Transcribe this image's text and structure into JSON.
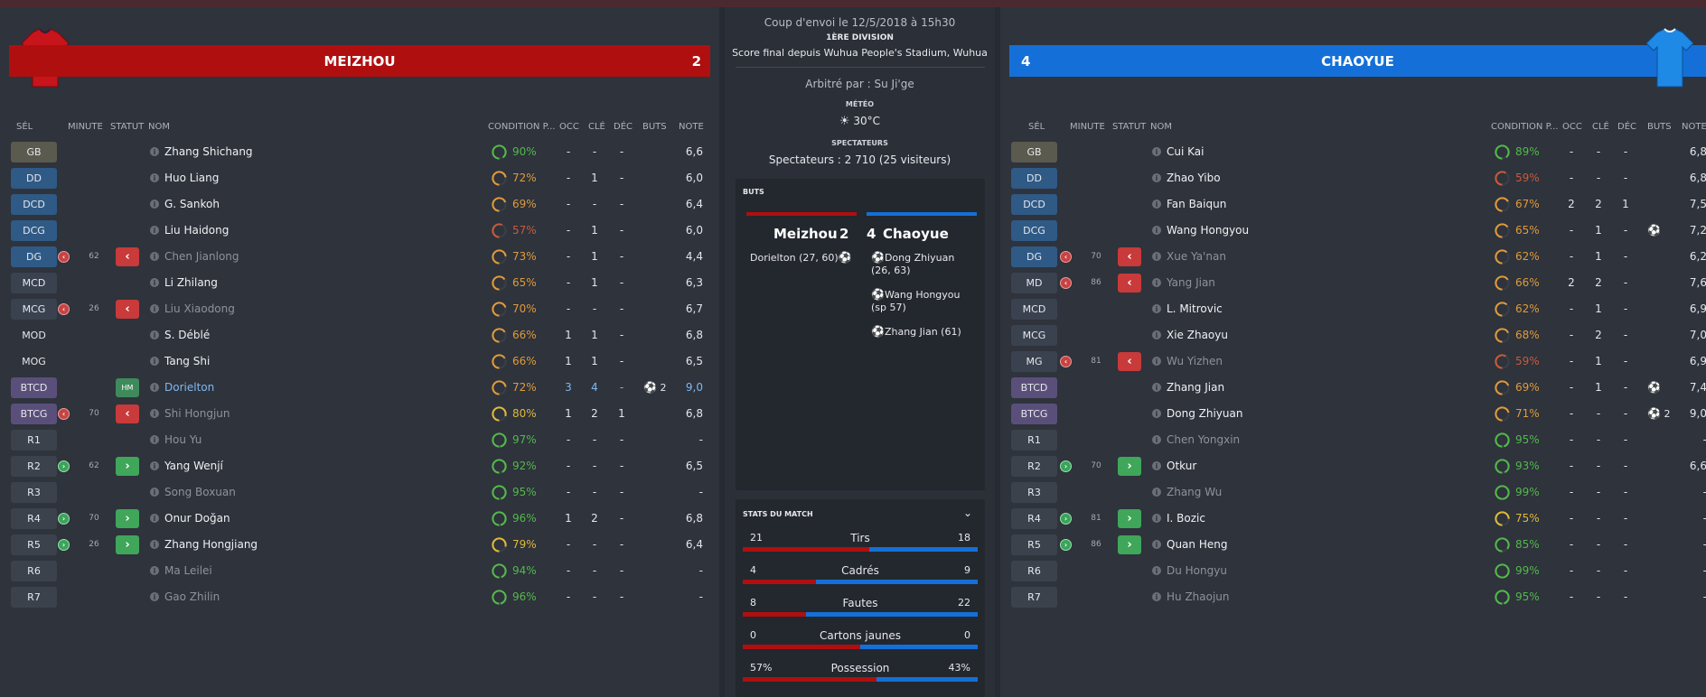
{
  "colors": {
    "home": "#b00f0f",
    "away": "#1470d8"
  },
  "home": {
    "name": "MEIZHOU",
    "score": "2",
    "headers": {
      "sel": "SÉL",
      "minute": "MINUTE",
      "statut": "STATUT",
      "nom": "NOM",
      "cond": "CONDITION P...",
      "occ": "OCC",
      "cle": "CLÉ",
      "dec": "DÉC",
      "buts": "BUTS",
      "note": "NOTE"
    },
    "players": [
      {
        "pos": "GB",
        "cls": "p-gk",
        "sub": "",
        "minute": "",
        "btn": "",
        "name": "Zhang Shichang",
        "style": "",
        "cond": "90%",
        "occ": "-",
        "cle": "-",
        "dec": "-",
        "buts": "",
        "note": "6,6"
      },
      {
        "pos": "DD",
        "cls": "p-def",
        "sub": "",
        "minute": "",
        "btn": "",
        "name": "Huo Liang",
        "style": "",
        "cond": "72%",
        "occ": "-",
        "cle": "1",
        "dec": "-",
        "buts": "",
        "note": "6,0"
      },
      {
        "pos": "DCD",
        "cls": "p-def",
        "sub": "",
        "minute": "",
        "btn": "",
        "name": "G. Sankoh",
        "style": "",
        "cond": "69%",
        "occ": "-",
        "cle": "-",
        "dec": "-",
        "buts": "",
        "note": "6,4"
      },
      {
        "pos": "DCG",
        "cls": "p-def",
        "sub": "",
        "minute": "",
        "btn": "",
        "name": "Liu Haidong",
        "style": "",
        "cond": "57%",
        "occ": "-",
        "cle": "1",
        "dec": "-",
        "buts": "",
        "note": "6,0"
      },
      {
        "pos": "DG",
        "cls": "p-def",
        "sub": "out",
        "minute": "62",
        "btn": "out",
        "name": "Chen Jianlong",
        "style": "dim",
        "cond": "73%",
        "occ": "-",
        "cle": "1",
        "dec": "-",
        "buts": "",
        "note": "4,4"
      },
      {
        "pos": "MCD",
        "cls": "p-mid",
        "sub": "",
        "minute": "",
        "btn": "",
        "name": "Li Zhilang",
        "style": "",
        "cond": "65%",
        "occ": "-",
        "cle": "1",
        "dec": "-",
        "buts": "",
        "note": "6,3"
      },
      {
        "pos": "MCG",
        "cls": "p-mid",
        "sub": "out",
        "minute": "26",
        "btn": "out",
        "name": "Liu Xiaodong",
        "style": "dim",
        "cond": "70%",
        "occ": "-",
        "cle": "-",
        "dec": "-",
        "buts": "",
        "note": "6,7"
      },
      {
        "pos": "MOD",
        "cls": "p-mid2",
        "sub": "",
        "minute": "",
        "btn": "",
        "name": "S. Déblé",
        "style": "",
        "cond": "66%",
        "occ": "1",
        "cle": "1",
        "dec": "-",
        "buts": "",
        "note": "6,8"
      },
      {
        "pos": "MOG",
        "cls": "p-mid2",
        "sub": "",
        "minute": "",
        "btn": "",
        "name": "Tang Shi",
        "style": "",
        "cond": "66%",
        "occ": "1",
        "cle": "1",
        "dec": "-",
        "buts": "",
        "note": "6,5"
      },
      {
        "pos": "BTCD",
        "cls": "p-fwd",
        "sub": "",
        "minute": "",
        "btn": "hm",
        "name": "Dorielton",
        "style": "star",
        "cond": "72%",
        "occ": "3",
        "cle": "4",
        "dec": "-",
        "buts": "2",
        "note": "9,0"
      },
      {
        "pos": "BTCG",
        "cls": "p-fwd",
        "sub": "out",
        "minute": "70",
        "btn": "out",
        "name": "Shi Hongjun",
        "style": "dim",
        "cond": "80%",
        "occ": "1",
        "cle": "2",
        "dec": "1",
        "buts": "",
        "note": "6,8"
      },
      {
        "pos": "R1",
        "cls": "p-sub",
        "sub": "",
        "minute": "",
        "btn": "",
        "name": "Hou Yu",
        "style": "dim",
        "cond": "97%",
        "occ": "-",
        "cle": "-",
        "dec": "-",
        "buts": "",
        "note": "-"
      },
      {
        "pos": "R2",
        "cls": "p-sub",
        "sub": "in",
        "minute": "62",
        "btn": "in",
        "name": "Yang Wenjí",
        "style": "",
        "cond": "92%",
        "occ": "-",
        "cle": "-",
        "dec": "-",
        "buts": "",
        "note": "6,5"
      },
      {
        "pos": "R3",
        "cls": "p-sub",
        "sub": "",
        "minute": "",
        "btn": "",
        "name": "Song Boxuan",
        "style": "dim",
        "cond": "95%",
        "occ": "-",
        "cle": "-",
        "dec": "-",
        "buts": "",
        "note": "-"
      },
      {
        "pos": "R4",
        "cls": "p-sub",
        "sub": "in",
        "minute": "70",
        "btn": "in",
        "name": "Onur Doğan",
        "style": "",
        "cond": "96%",
        "occ": "1",
        "cle": "2",
        "dec": "-",
        "buts": "",
        "note": "6,8"
      },
      {
        "pos": "R5",
        "cls": "p-sub",
        "sub": "in",
        "minute": "26",
        "btn": "in",
        "name": "Zhang Hongjiang",
        "style": "",
        "cond": "79%",
        "occ": "-",
        "cle": "-",
        "dec": "-",
        "buts": "",
        "note": "6,4"
      },
      {
        "pos": "R6",
        "cls": "p-sub",
        "sub": "",
        "minute": "",
        "btn": "",
        "name": "Ma Leilei",
        "style": "dim",
        "cond": "94%",
        "occ": "-",
        "cle": "-",
        "dec": "-",
        "buts": "",
        "note": "-"
      },
      {
        "pos": "R7",
        "cls": "p-sub",
        "sub": "",
        "minute": "",
        "btn": "",
        "name": "Gao Zhilin",
        "style": "dim",
        "cond": "96%",
        "occ": "-",
        "cle": "-",
        "dec": "-",
        "buts": "",
        "note": "-"
      }
    ]
  },
  "away": {
    "name": "CHAOYUE",
    "score": "4",
    "headers": {
      "sel": "SÉL",
      "minute": "MINUTE",
      "statut": "STATUT",
      "nom": "NOM",
      "cond": "CONDITION P...",
      "occ": "OCC",
      "cle": "CLÉ",
      "dec": "DÉC",
      "buts": "BUTS",
      "note": "NOTE"
    },
    "players": [
      {
        "pos": "GB",
        "cls": "p-gk",
        "sub": "",
        "minute": "",
        "btn": "",
        "name": "Cui Kai",
        "style": "",
        "cond": "89%",
        "occ": "-",
        "cle": "-",
        "dec": "-",
        "buts": "",
        "note": "6,8"
      },
      {
        "pos": "DD",
        "cls": "p-def",
        "sub": "",
        "minute": "",
        "btn": "",
        "name": "Zhao Yibo",
        "style": "",
        "cond": "59%",
        "occ": "-",
        "cle": "-",
        "dec": "-",
        "buts": "",
        "note": "6,8"
      },
      {
        "pos": "DCD",
        "cls": "p-def",
        "sub": "",
        "minute": "",
        "btn": "",
        "name": "Fan Baiqun",
        "style": "",
        "cond": "67%",
        "occ": "2",
        "cle": "2",
        "dec": "1",
        "buts": "",
        "note": "7,5"
      },
      {
        "pos": "DCG",
        "cls": "p-def",
        "sub": "",
        "minute": "",
        "btn": "",
        "name": "Wang Hongyou",
        "style": "",
        "cond": "65%",
        "occ": "-",
        "cle": "1",
        "dec": "-",
        "buts": "1",
        "note": "7,2"
      },
      {
        "pos": "DG",
        "cls": "p-def",
        "sub": "out",
        "minute": "70",
        "btn": "out",
        "name": "Xue Ya'nan",
        "style": "dim",
        "cond": "62%",
        "occ": "-",
        "cle": "1",
        "dec": "-",
        "buts": "",
        "note": "6,2"
      },
      {
        "pos": "MD",
        "cls": "p-mid",
        "sub": "out",
        "minute": "86",
        "btn": "out",
        "name": "Yang Jian",
        "style": "dim",
        "cond": "66%",
        "occ": "2",
        "cle": "2",
        "dec": "-",
        "buts": "",
        "note": "7,6"
      },
      {
        "pos": "MCD",
        "cls": "p-mid",
        "sub": "",
        "minute": "",
        "btn": "",
        "name": "L. Mitrovic",
        "style": "",
        "cond": "62%",
        "occ": "-",
        "cle": "1",
        "dec": "-",
        "buts": "",
        "note": "6,9"
      },
      {
        "pos": "MCG",
        "cls": "p-mid",
        "sub": "",
        "minute": "",
        "btn": "",
        "name": "Xie Zhaoyu",
        "style": "",
        "cond": "68%",
        "occ": "-",
        "cle": "2",
        "dec": "-",
        "buts": "",
        "note": "7,0"
      },
      {
        "pos": "MG",
        "cls": "p-mid",
        "sub": "out",
        "minute": "81",
        "btn": "out",
        "name": "Wu Yizhen",
        "style": "dim",
        "cond": "59%",
        "occ": "-",
        "cle": "1",
        "dec": "-",
        "buts": "",
        "note": "6,9"
      },
      {
        "pos": "BTCD",
        "cls": "p-fwd",
        "sub": "",
        "minute": "",
        "btn": "",
        "name": "Zhang Jian",
        "style": "",
        "cond": "69%",
        "occ": "-",
        "cle": "1",
        "dec": "-",
        "buts": "1",
        "note": "7,4"
      },
      {
        "pos": "BTCG",
        "cls": "p-fwd",
        "sub": "",
        "minute": "",
        "btn": "",
        "name": "Dong Zhiyuan",
        "style": "",
        "cond": "71%",
        "occ": "-",
        "cle": "-",
        "dec": "-",
        "buts": "2",
        "note": "9,0"
      },
      {
        "pos": "R1",
        "cls": "p-sub",
        "sub": "",
        "minute": "",
        "btn": "",
        "name": "Chen Yongxin",
        "style": "dim",
        "cond": "95%",
        "occ": "-",
        "cle": "-",
        "dec": "-",
        "buts": "",
        "note": "-"
      },
      {
        "pos": "R2",
        "cls": "p-sub",
        "sub": "in",
        "minute": "70",
        "btn": "in",
        "name": "Otkur",
        "style": "",
        "cond": "93%",
        "occ": "-",
        "cle": "-",
        "dec": "-",
        "buts": "",
        "note": "6,6"
      },
      {
        "pos": "R3",
        "cls": "p-sub",
        "sub": "",
        "minute": "",
        "btn": "",
        "name": "Zhang Wu",
        "style": "dim",
        "cond": "99%",
        "occ": "-",
        "cle": "-",
        "dec": "-",
        "buts": "",
        "note": "-"
      },
      {
        "pos": "R4",
        "cls": "p-sub",
        "sub": "in",
        "minute": "81",
        "btn": "in",
        "name": "I. Bozic",
        "style": "",
        "cond": "75%",
        "occ": "-",
        "cle": "-",
        "dec": "-",
        "buts": "",
        "note": "-"
      },
      {
        "pos": "R5",
        "cls": "p-sub",
        "sub": "in",
        "minute": "86",
        "btn": "in",
        "name": "Quan Heng",
        "style": "",
        "cond": "85%",
        "occ": "-",
        "cle": "-",
        "dec": "-",
        "buts": "",
        "note": "-"
      },
      {
        "pos": "R6",
        "cls": "p-sub",
        "sub": "",
        "minute": "",
        "btn": "",
        "name": "Du Hongyu",
        "style": "dim",
        "cond": "99%",
        "occ": "-",
        "cle": "-",
        "dec": "-",
        "buts": "",
        "note": "-"
      },
      {
        "pos": "R7",
        "cls": "p-sub",
        "sub": "",
        "minute": "",
        "btn": "",
        "name": "Hu Zhaojun",
        "style": "dim",
        "cond": "95%",
        "occ": "-",
        "cle": "-",
        "dec": "-",
        "buts": "",
        "note": "-"
      }
    ]
  },
  "match": {
    "kickoff": "Coup d'envoi le 12/5/2018 à 15h30",
    "competition": "1ÈRE DIVISION",
    "venue": "Score final depuis Wuhua People's Stadium, Wuhua",
    "referee": "Arbitré par : Su Ji'ge",
    "weather_label": "MÉTÉO",
    "weather": "30°C",
    "spectators_label": "SPECTATEURS",
    "spectators": "Spectateurs : 2 710 (25 visiteurs)"
  },
  "goals": {
    "title": "BUTS",
    "home_name": "Meizhou",
    "home_score": "2",
    "away_score": "4",
    "away_name": "Chaoyue",
    "home_scorers": [
      "Dorielton (27, 60)"
    ],
    "away_scorers": [
      "Dong Zhiyuan (26, 63)",
      "Wang Hongyou (sp 57)",
      "Zhang Jian (61)"
    ]
  },
  "stats": {
    "title": "STATS DU MATCH",
    "rows": [
      {
        "label": "Tirs",
        "home": "21",
        "away": "18",
        "home_share": 0.54
      },
      {
        "label": "Cadrés",
        "home": "4",
        "away": "9",
        "home_share": 0.31
      },
      {
        "label": "Fautes",
        "home": "8",
        "away": "22",
        "home_share": 0.27
      },
      {
        "label": "Cartons jaunes",
        "home": "0",
        "away": "0",
        "home_share": 0.5
      },
      {
        "label": "Possession",
        "home": "57%",
        "away": "43%",
        "home_share": 0.57
      }
    ]
  }
}
